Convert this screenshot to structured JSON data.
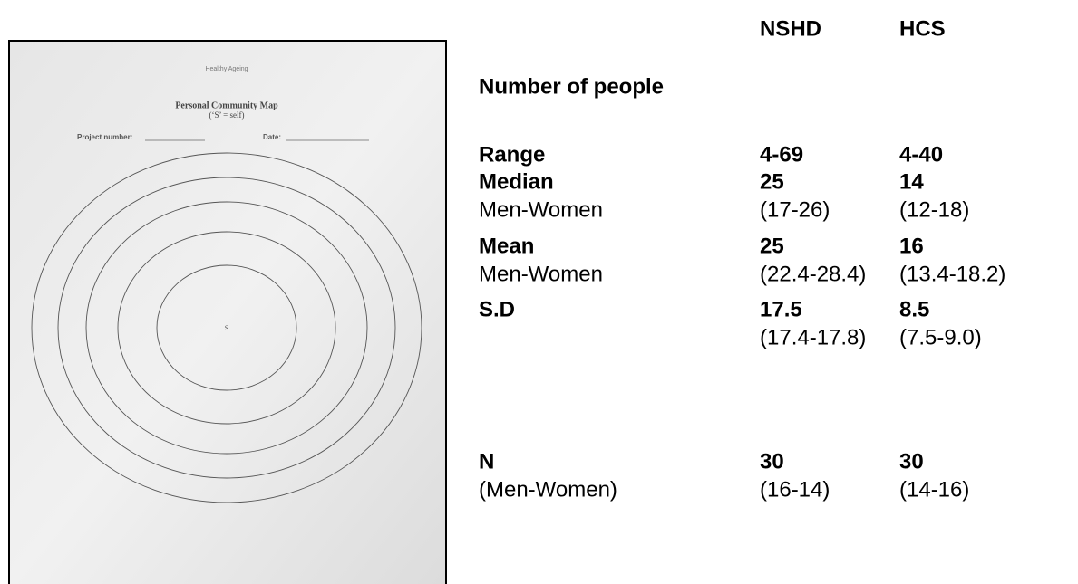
{
  "form": {
    "header": "Healthy Ageing",
    "title": "Personal Community Map",
    "subtitle": "(‘S’ = self)",
    "project_label": "Project number:",
    "date_label": "Date:",
    "center": "S"
  },
  "table": {
    "columns": [
      "NSHD",
      "HCS"
    ],
    "heading": "Number of people",
    "rows": [
      {
        "label": "Range",
        "values": [
          "4-69",
          "4-40"
        ]
      },
      {
        "label": "Median",
        "values": [
          25,
          14
        ],
        "sub_label": "Men-Women",
        "sub_values": [
          "(17-26)",
          "(12-18)"
        ]
      },
      {
        "label": "Mean",
        "values": [
          25,
          16
        ],
        "sub_label": "Men-Women",
        "sub_values": [
          "(22.4-28.4)",
          "(13.4-18.2)"
        ]
      },
      {
        "label": "S.D",
        "values": [
          17.5,
          8.5
        ],
        "sub_values": [
          "(17.4-17.8)",
          "(7.5-9.0)"
        ]
      },
      {
        "label": "N",
        "values": [
          30,
          30
        ],
        "sub_label": "(Men-Women)",
        "sub_values": [
          "(16-14)",
          "(14-16)"
        ]
      }
    ]
  }
}
